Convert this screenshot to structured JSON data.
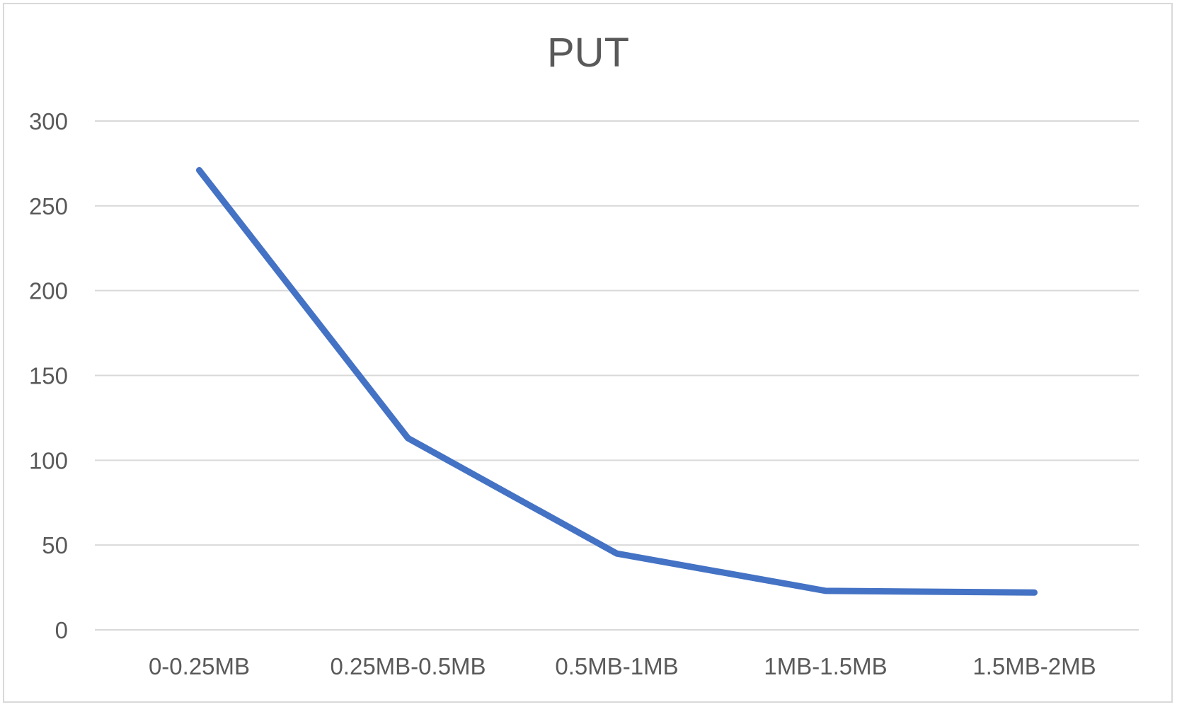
{
  "chart_data": {
    "type": "line",
    "title": "PUT",
    "xlabel": "",
    "ylabel": "",
    "categories": [
      "0-0.25MB",
      "0.25MB-0.5MB",
      "0.5MB-1MB",
      "1MB-1.5MB",
      "1.5MB-2MB"
    ],
    "series": [
      {
        "values": [
          271,
          113,
          45,
          23,
          22
        ],
        "color": "#4472c4"
      }
    ],
    "ylim": [
      0,
      300
    ],
    "yticks": [
      "0",
      "50",
      "100",
      "150",
      "200",
      "250",
      "300"
    ],
    "grid": true,
    "legend": "none"
  }
}
